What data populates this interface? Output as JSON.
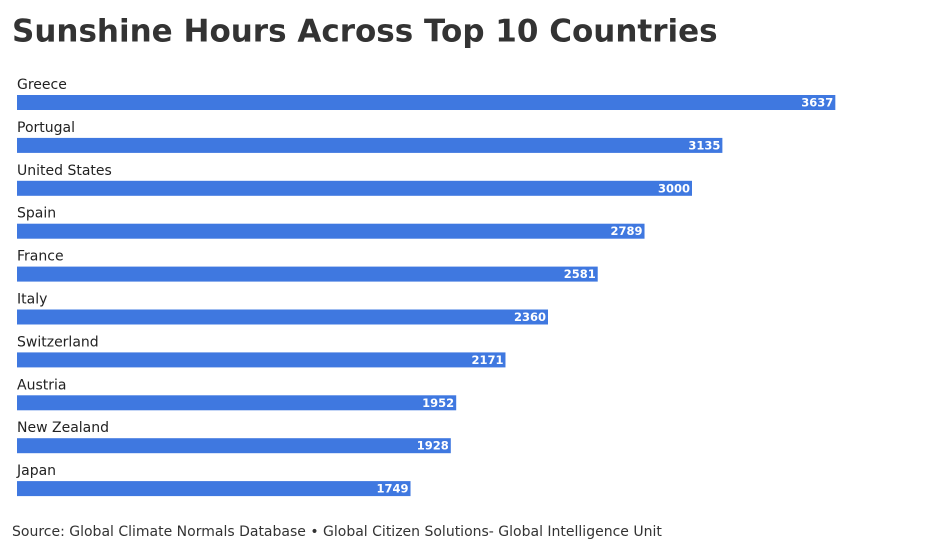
{
  "chart_data": {
    "type": "bar",
    "orientation": "horizontal",
    "title": "Sunshine Hours Across Top 10 Countries",
    "categories": [
      "Greece",
      "Portugal",
      "United States",
      "Spain",
      "France",
      "Italy",
      "Switzerland",
      "Austria",
      "New Zealand",
      "Japan"
    ],
    "values": [
      3637,
      3135,
      3000,
      2789,
      2581,
      2360,
      2171,
      1952,
      1928,
      1749
    ],
    "color": "#3f78e0",
    "xlim": [
      0,
      4000
    ],
    "source": "Source: Global Climate Normals Database • Global Citizen Solutions- Global Intelligence Unit"
  }
}
